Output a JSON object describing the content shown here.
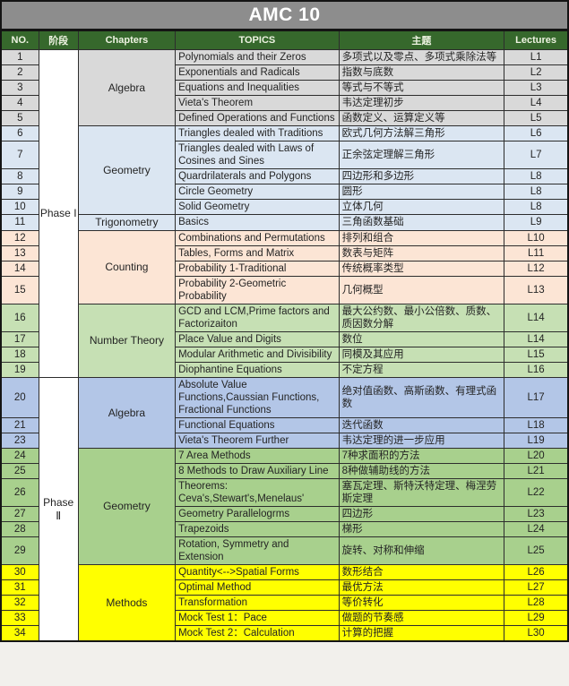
{
  "title": "AMC 10",
  "columns": [
    "NO.",
    "阶段",
    "Chapters",
    "TOPICS",
    "主题",
    "Lectures"
  ],
  "colors": {
    "title_bg": "#8d8d8d",
    "header_bg": "#36682c",
    "header_text": "#eef3e2",
    "phase_bg": "#ffffff",
    "gray": "#d9d9d9",
    "lightblue": "#dbe6f2",
    "peach": "#fce5d5",
    "lightgreen": "#c6e0b4",
    "periwinkle": "#b3c6e7",
    "green": "#a8d08d",
    "yellow": "#ffff00"
  },
  "phases": [
    {
      "label": "Phase I",
      "sections": [
        {
          "chapter": "Algebra",
          "color": "gray",
          "rows": [
            {
              "no": "1",
              "topic": "Polynomials and their Zeros",
              "theme": "多项式以及零点、多项式乘除法等",
              "lecture": "L1"
            },
            {
              "no": "2",
              "topic": "Exponentials and Radicals",
              "theme": "指数与底数",
              "lecture": "L2"
            },
            {
              "no": "3",
              "topic": "Equations and Inequalities",
              "theme": "等式与不等式",
              "lecture": "L3"
            },
            {
              "no": "4",
              "topic": "Vieta's Theorem",
              "theme": "韦达定理初步",
              "lecture": "L4"
            },
            {
              "no": "5",
              "topic": "Defined Operations and Functions",
              "theme": "函数定义、运算定义等",
              "lecture": "L5"
            }
          ]
        },
        {
          "chapter": "Geometry",
          "color": "lightblue",
          "rows": [
            {
              "no": "6",
              "topic": "Triangles dealed with Traditions",
              "theme": "欧式几何方法解三角形",
              "lecture": "L6"
            },
            {
              "no": "7",
              "topic": "Triangles dealed with Laws of Cosines and Sines",
              "theme": "正余弦定理解三角形",
              "lecture": "L7"
            },
            {
              "no": "8",
              "topic": "Quardrilaterals and Polygons",
              "theme": "四边形和多边形",
              "lecture": "L8"
            },
            {
              "no": "9",
              "topic": "Circle Geometry",
              "theme": "圆形",
              "lecture": "L8"
            },
            {
              "no": "10",
              "topic": "Solid Geometry",
              "theme": "立体几何",
              "lecture": "L8"
            }
          ]
        },
        {
          "chapter": "Trigonometry",
          "color": "lightblue",
          "rows": [
            {
              "no": "11",
              "topic": "Basics",
              "theme": "三角函数基础",
              "lecture": "L9"
            }
          ]
        },
        {
          "chapter": "Counting",
          "color": "peach",
          "rows": [
            {
              "no": "12",
              "topic": "Combinations and Permutations",
              "theme": "排列和组合",
              "lecture": "L10"
            },
            {
              "no": "13",
              "topic": "Tables, Forms and Matrix",
              "theme": "数表与矩阵",
              "lecture": "L11"
            },
            {
              "no": "14",
              "topic": "Probability 1-Traditional",
              "theme": "传统概率类型",
              "lecture": "L12"
            },
            {
              "no": "15",
              "topic": "Probability 2-Geometric Probability",
              "theme": "几何概型",
              "lecture": "L13"
            }
          ]
        },
        {
          "chapter": "Number Theory",
          "color": "lightgreen",
          "rows": [
            {
              "no": "16",
              "topic": "GCD and LCM,Prime factors and Factorizaiton",
              "theme": "最大公约数、最小公倍数、质数、质因数分解",
              "lecture": "L14"
            },
            {
              "no": "17",
              "topic": "Place Value and Digits",
              "theme": "数位",
              "lecture": "L14"
            },
            {
              "no": "18",
              "topic": "Modular Arithmetic and Divisibility",
              "theme": "同模及其应用",
              "lecture": "L15"
            },
            {
              "no": "19",
              "topic": "Diophantine Equations",
              "theme": "不定方程",
              "lecture": "L16"
            }
          ]
        }
      ]
    },
    {
      "label": "Phase Ⅱ",
      "sections": [
        {
          "chapter": "Algebra",
          "color": "periwinkle",
          "rows": [
            {
              "no": "20",
              "topic": "Absolute Value Functions,Caussian Functions, Fractional Functions",
              "theme": "绝对值函数、高斯函数、有理式函数",
              "lecture": "L17"
            },
            {
              "no": "21",
              "topic": "Functional Equations",
              "theme": "迭代函数",
              "lecture": "L18"
            },
            {
              "no": "23",
              "topic": "Vieta's Theorem Further",
              "theme": "韦达定理的进一步应用",
              "lecture": "L19"
            }
          ]
        },
        {
          "chapter": "Geometry",
          "color": "green",
          "rows": [
            {
              "no": "24",
              "topic": "7 Area Methods",
              "theme": "7种求面积的方法",
              "lecture": "L20"
            },
            {
              "no": "25",
              "topic": "8 Methods to Draw Auxiliary Line",
              "theme": "8种做辅助线的方法",
              "lecture": "L21"
            },
            {
              "no": "26",
              "topic": "Theorems: Ceva's,Stewart's,Menelaus'",
              "theme": "塞瓦定理、斯特沃特定理、梅涅劳斯定理",
              "lecture": "L22"
            },
            {
              "no": "27",
              "topic": "Geometry Parallelogrms",
              "theme": "四边形",
              "lecture": "L23"
            },
            {
              "no": "28",
              "topic": "Trapezoids",
              "theme": "梯形",
              "lecture": "L24"
            },
            {
              "no": "29",
              "topic": "Rotation, Symmetry and Extension",
              "theme": "旋转、对称和伸缩",
              "lecture": "L25"
            }
          ]
        },
        {
          "chapter": "Methods",
          "color": "yellow",
          "rows": [
            {
              "no": "30",
              "topic": "Quantity<-->Spatial Forms",
              "theme": "数形结合",
              "lecture": "L26"
            },
            {
              "no": "31",
              "topic": "Optimal Method",
              "theme": "最优方法",
              "lecture": "L27"
            },
            {
              "no": "32",
              "topic": "Transformation",
              "theme": "等价转化",
              "lecture": "L28"
            },
            {
              "no": "33",
              "topic": "Mock Test 1：Pace",
              "theme": "做题的节奏感",
              "lecture": "L29"
            },
            {
              "no": "34",
              "topic": "Mock Test 2：Calculation",
              "theme": "计算的把握",
              "lecture": "L30"
            }
          ]
        }
      ]
    }
  ]
}
